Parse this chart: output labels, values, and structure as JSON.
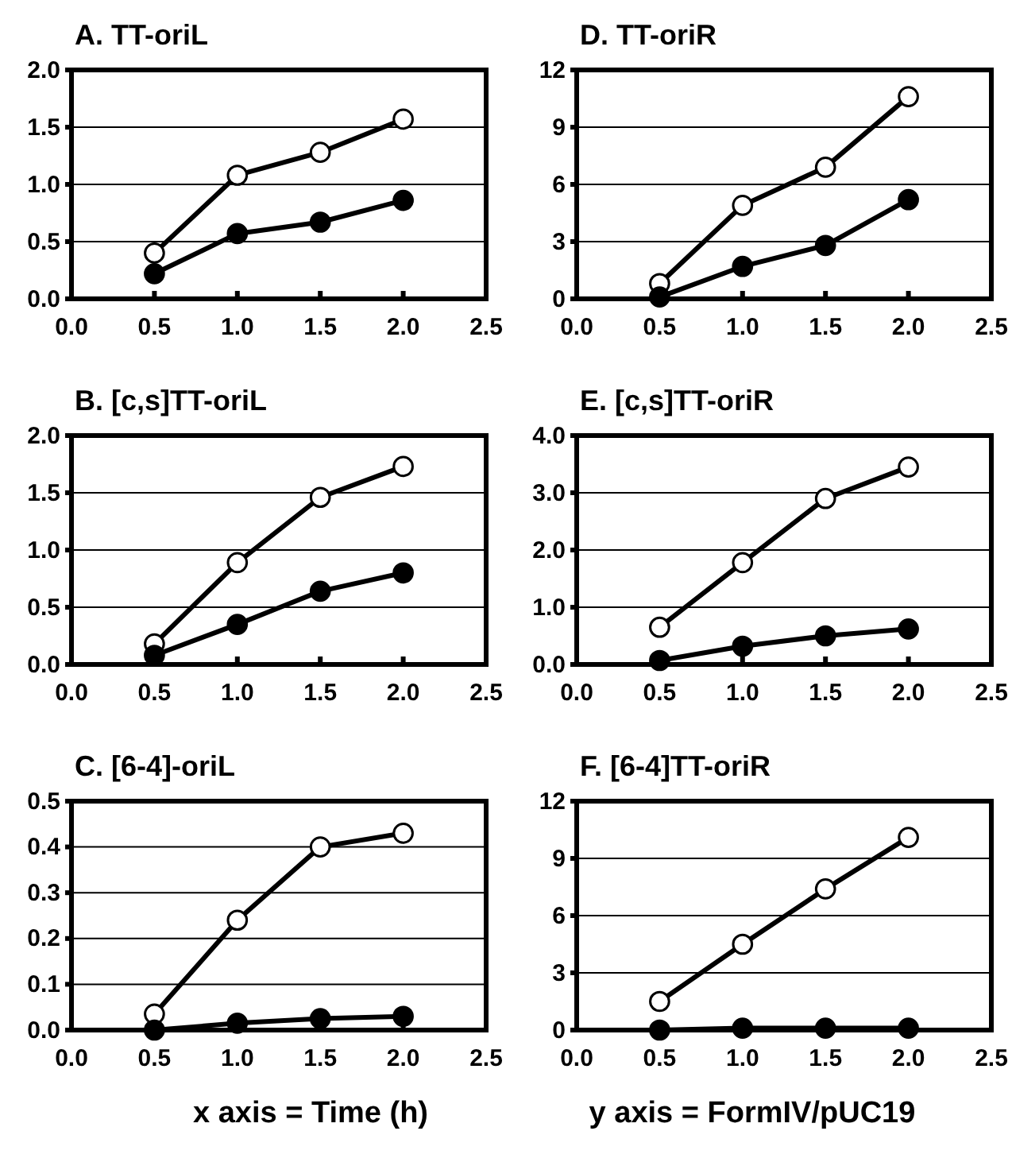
{
  "chart_data": [
    {
      "type": "line",
      "title": "A.  TT-oriL",
      "x": [
        0.5,
        1.0,
        1.5,
        2.0
      ],
      "xlim": [
        0,
        2.5
      ],
      "xticks": [
        {
          "value": 0,
          "label": "0.0"
        },
        {
          "value": 0.5,
          "label": "0.5"
        },
        {
          "value": 1,
          "label": "1.0"
        },
        {
          "value": 1.5,
          "label": "1.5"
        },
        {
          "value": 2,
          "label": "2.0"
        },
        {
          "value": 2.5,
          "label": "2.5"
        }
      ],
      "ylim": [
        0,
        2
      ],
      "yticks": [
        {
          "value": 0,
          "label": "0.0"
        },
        {
          "value": 0.5,
          "label": "0.5"
        },
        {
          "value": 1,
          "label": "1.0"
        },
        {
          "value": 1.5,
          "label": "1.5"
        },
        {
          "value": 2,
          "label": "2.0"
        }
      ],
      "grid": "y",
      "marker": "circle",
      "series": [
        {
          "color": "#ffffff",
          "values": [
            0.4,
            1.08,
            1.28,
            1.57
          ]
        },
        {
          "color": "#000000",
          "values": [
            0.22,
            0.57,
            0.67,
            0.86
          ]
        }
      ]
    },
    {
      "type": "line",
      "title": "D.  TT-oriR",
      "x": [
        0.5,
        1.0,
        1.5,
        2.0
      ],
      "xlim": [
        0,
        2.5
      ],
      "xticks": [
        {
          "value": 0,
          "label": "0.0"
        },
        {
          "value": 0.5,
          "label": "0.5"
        },
        {
          "value": 1,
          "label": "1.0"
        },
        {
          "value": 1.5,
          "label": "1.5"
        },
        {
          "value": 2,
          "label": "2.0"
        },
        {
          "value": 2.5,
          "label": "2.5"
        }
      ],
      "ylim": [
        0,
        12
      ],
      "yticks": [
        0,
        3,
        6,
        9,
        12
      ],
      "grid": "y",
      "marker": "circle",
      "series": [
        {
          "color": "#ffffff",
          "values": [
            0.8,
            4.9,
            6.9,
            10.6
          ]
        },
        {
          "color": "#000000",
          "values": [
            0.1,
            1.7,
            2.8,
            5.2
          ]
        }
      ]
    },
    {
      "type": "line",
      "title": "B.  [c,s]TT-oriL",
      "x": [
        0.5,
        1.0,
        1.5,
        2.0
      ],
      "xlim": [
        0,
        2.5
      ],
      "xticks": [
        {
          "value": 0,
          "label": "0.0"
        },
        {
          "value": 0.5,
          "label": "0.5"
        },
        {
          "value": 1,
          "label": "1.0"
        },
        {
          "value": 1.5,
          "label": "1.5"
        },
        {
          "value": 2,
          "label": "2.0"
        },
        {
          "value": 2.5,
          "label": "2.5"
        }
      ],
      "ylim": [
        0,
        2
      ],
      "yticks": [
        {
          "value": 0,
          "label": "0.0"
        },
        {
          "value": 0.5,
          "label": "0.5"
        },
        {
          "value": 1,
          "label": "1.0"
        },
        {
          "value": 1.5,
          "label": "1.5"
        },
        {
          "value": 2,
          "label": "2.0"
        }
      ],
      "grid": "y",
      "marker": "circle",
      "series": [
        {
          "color": "#ffffff",
          "values": [
            0.18,
            0.89,
            1.46,
            1.73
          ]
        },
        {
          "color": "#000000",
          "values": [
            0.08,
            0.35,
            0.64,
            0.8
          ]
        }
      ]
    },
    {
      "type": "line",
      "title": "E.  [c,s]TT-oriR",
      "x": [
        0.5,
        1.0,
        1.5,
        2.0
      ],
      "xlim": [
        0,
        2.5
      ],
      "xticks": [
        {
          "value": 0,
          "label": "0.0"
        },
        {
          "value": 0.5,
          "label": "0.5"
        },
        {
          "value": 1,
          "label": "1.0"
        },
        {
          "value": 1.5,
          "label": "1.5"
        },
        {
          "value": 2,
          "label": "2.0"
        },
        {
          "value": 2.5,
          "label": "2.5"
        }
      ],
      "ylim": [
        0,
        4
      ],
      "yticks": [
        {
          "value": 0,
          "label": "0.0"
        },
        {
          "value": 1,
          "label": "1.0"
        },
        {
          "value": 2,
          "label": "2.0"
        },
        {
          "value": 3,
          "label": "3.0"
        },
        {
          "value": 4,
          "label": "4.0"
        }
      ],
      "grid": "y",
      "marker": "circle",
      "series": [
        {
          "color": "#ffffff",
          "values": [
            0.65,
            1.78,
            2.9,
            3.45
          ]
        },
        {
          "color": "#000000",
          "values": [
            0.07,
            0.32,
            0.5,
            0.62
          ]
        }
      ]
    },
    {
      "type": "line",
      "title": "C.  [6-4]-oriL",
      "x": [
        0.5,
        1.0,
        1.5,
        2.0
      ],
      "xlim": [
        0,
        2.5
      ],
      "xticks": [
        {
          "value": 0,
          "label": "0.0"
        },
        {
          "value": 0.5,
          "label": "0.5"
        },
        {
          "value": 1,
          "label": "1.0"
        },
        {
          "value": 1.5,
          "label": "1.5"
        },
        {
          "value": 2,
          "label": "2.0"
        },
        {
          "value": 2.5,
          "label": "2.5"
        }
      ],
      "ylim": [
        0,
        0.5
      ],
      "yticks": [
        {
          "value": 0,
          "label": "0.0"
        },
        0.1,
        0.2,
        0.3,
        0.4,
        0.5
      ],
      "grid": "y",
      "marker": "circle",
      "annotations": [
        "x axis = Time (h)"
      ],
      "series": [
        {
          "color": "#ffffff",
          "values": [
            0.035,
            0.24,
            0.4,
            0.43
          ]
        },
        {
          "color": "#000000",
          "values": [
            0.0,
            0.015,
            0.025,
            0.03
          ]
        }
      ]
    },
    {
      "type": "line",
      "title": "F.  [6-4]TT-oriR",
      "x": [
        0.5,
        1.0,
        1.5,
        2.0
      ],
      "xlim": [
        0,
        2.5
      ],
      "xticks": [
        {
          "value": 0,
          "label": "0.0"
        },
        {
          "value": 0.5,
          "label": "0.5"
        },
        {
          "value": 1,
          "label": "1.0"
        },
        {
          "value": 1.5,
          "label": "1.5"
        },
        {
          "value": 2,
          "label": "2.0"
        },
        {
          "value": 2.5,
          "label": "2.5"
        }
      ],
      "ylim": [
        0,
        12
      ],
      "yticks": [
        0,
        3,
        6,
        9,
        12
      ],
      "grid": "y",
      "marker": "circle",
      "annotations": [
        "y axis = FormIV/pUC19"
      ],
      "series": [
        {
          "color": "#ffffff",
          "values": [
            1.5,
            4.5,
            7.4,
            10.1
          ]
        },
        {
          "color": "#000000",
          "values": [
            0.0,
            0.1,
            0.1,
            0.1
          ]
        }
      ]
    }
  ]
}
